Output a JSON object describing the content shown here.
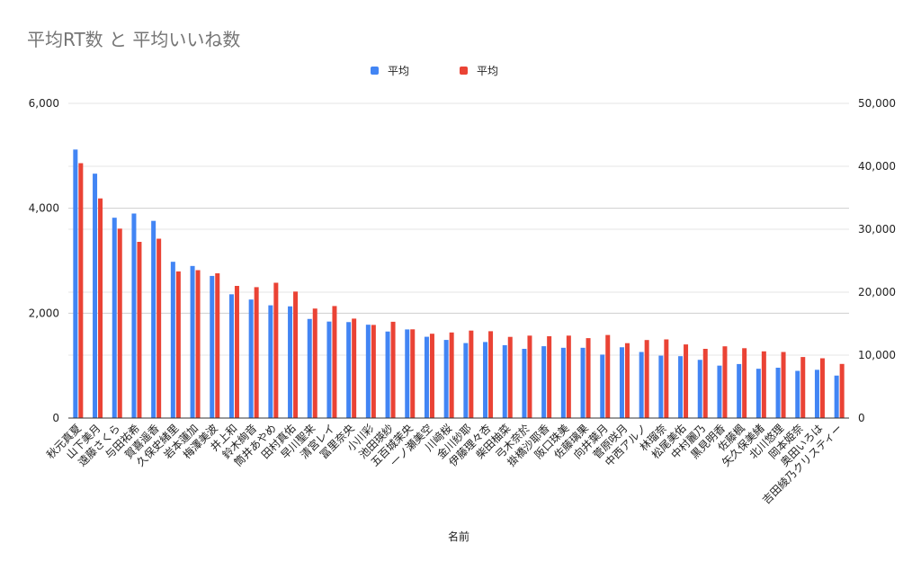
{
  "chart_data": {
    "type": "bar",
    "title": "平均RT数 と 平均いいね数",
    "xlabel": "名前",
    "categories": [
      "秋元真夏",
      "山下美月",
      "遠藤さくら",
      "与田祐希",
      "賀喜遥香",
      "久保史緒里",
      "岩本蓮加",
      "梅澤美波",
      "井上和",
      "鈴木絢音",
      "筒井あやめ",
      "田村真佑",
      "早川聖来",
      "清宮レイ",
      "冨里奈央",
      "小川彩",
      "池田瑛紗",
      "五百城茉央",
      "一ノ瀬美空",
      "川﨑桜",
      "金川紗耶",
      "伊藤理々杏",
      "柴田柚菜",
      "弓木奈於",
      "掛橋沙耶香",
      "阪口珠美",
      "佐藤璃果",
      "向井葉月",
      "菅原咲月",
      "中西アルノ",
      "林瑠奈",
      "松尾美佑",
      "中村麗乃",
      "黒見明香",
      "佐藤楓",
      "矢久保美緒",
      "北川悠理",
      "岡本姫奈",
      "奥田いろは",
      "吉田綾乃クリスティー"
    ],
    "series": [
      {
        "name": "平均",
        "axis": "left",
        "color": "#4285f4",
        "values": [
          5120,
          4660,
          3820,
          3900,
          3760,
          2980,
          2900,
          2710,
          2360,
          2260,
          2150,
          2130,
          1890,
          1840,
          1830,
          1780,
          1650,
          1690,
          1550,
          1490,
          1430,
          1450,
          1390,
          1320,
          1370,
          1340,
          1340,
          1210,
          1350,
          1260,
          1190,
          1180,
          1110,
          1000,
          1030,
          940,
          960,
          900,
          920,
          810
        ]
      },
      {
        "name": "平均",
        "axis": "right",
        "color": "#ea4335",
        "values": [
          40500,
          34900,
          30100,
          28000,
          28500,
          23300,
          23500,
          23000,
          21000,
          20800,
          21500,
          20100,
          17400,
          17800,
          15800,
          14800,
          15300,
          14100,
          13400,
          13600,
          13900,
          13800,
          12900,
          13100,
          13000,
          13100,
          12700,
          13200,
          11900,
          12400,
          12500,
          11700,
          11000,
          11400,
          11100,
          10600,
          10500,
          9700,
          9500,
          8600
        ]
      }
    ],
    "left_axis": {
      "ylim": [
        0,
        6000
      ],
      "ticks": [
        "0",
        "2,000",
        "4,000",
        "6,000"
      ]
    },
    "right_axis": {
      "ylim": [
        0,
        50000
      ],
      "ticks": [
        "0",
        "10,000",
        "20,000",
        "30,000",
        "40,000",
        "50,000"
      ]
    },
    "legend_position": "top",
    "grid": true
  }
}
